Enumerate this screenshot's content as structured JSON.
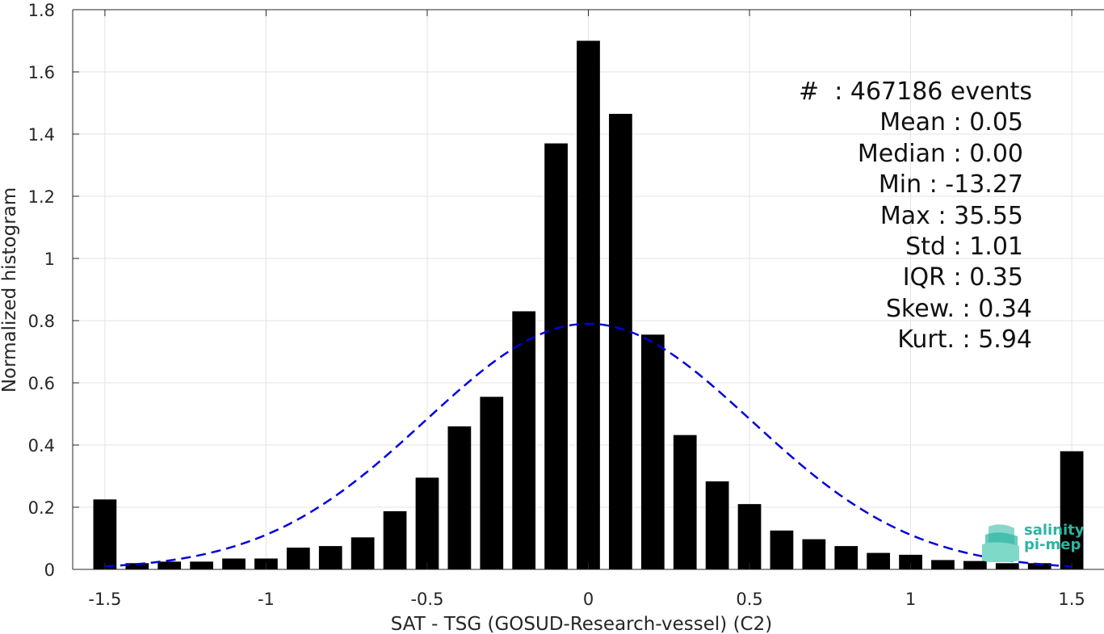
{
  "chart_data": {
    "type": "bar",
    "xlabel": "SAT - TSG (GOSUD-Research-vessel) (C2)",
    "ylabel": "Normalized histogram",
    "xlim": [
      -1.6,
      1.6
    ],
    "ylim": [
      0,
      1.8
    ],
    "xticks": [
      "-1.5",
      "-1",
      "-0.5",
      "0",
      "0.5",
      "1",
      "1.5"
    ],
    "xtick_values": [
      -1.5,
      -1,
      -0.5,
      0,
      0.5,
      1,
      1.5
    ],
    "yticks": [
      "0",
      "0.2",
      "0.4",
      "0.6",
      "0.8",
      "1",
      "1.2",
      "1.4",
      "1.6",
      "1.8"
    ],
    "ytick_values": [
      0,
      0.2,
      0.4,
      0.6,
      0.8,
      1,
      1.2,
      1.4,
      1.6,
      1.8
    ],
    "grid": true,
    "bar_color": "#000000",
    "bin_width": 0.1,
    "x": [
      -1.5,
      -1.4,
      -1.3,
      -1.2,
      -1.1,
      -1.0,
      -0.9,
      -0.8,
      -0.7,
      -0.6,
      -0.5,
      -0.4,
      -0.3,
      -0.2,
      -0.1,
      0.0,
      0.1,
      0.2,
      0.3,
      0.4,
      0.5,
      0.6,
      0.7,
      0.8,
      0.9,
      1.0,
      1.1,
      1.2,
      1.3,
      1.4,
      1.5
    ],
    "values": [
      0.225,
      0.02,
      0.025,
      0.025,
      0.035,
      0.035,
      0.07,
      0.075,
      0.103,
      0.187,
      0.295,
      0.46,
      0.555,
      0.83,
      1.37,
      1.7,
      1.465,
      0.755,
      0.432,
      0.283,
      0.21,
      0.125,
      0.097,
      0.075,
      0.053,
      0.047,
      0.03,
      0.027,
      0.02,
      0.02,
      0.38
    ],
    "fit": {
      "type": "gaussian",
      "mean": 0.0,
      "std": 0.505,
      "peak": 0.79,
      "x_range": [
        -1.5,
        1.5
      ],
      "color": "#0000dd",
      "style": "dashed"
    }
  },
  "stats": {
    "events": "#  : 467186 events",
    "mean": "Mean : 0.05",
    "median": "Median : 0.00",
    "min": "Min : -13.27",
    "max": "Max : 35.55",
    "std": "Std : 1.01",
    "iqr": "IQR : 0.35",
    "skew": "Skew. : 0.34",
    "kurt": "Kurt. : 5.94"
  },
  "logo": {
    "line1": "salinity",
    "line2": "pi-mep",
    "color": "#2bb5a0"
  }
}
